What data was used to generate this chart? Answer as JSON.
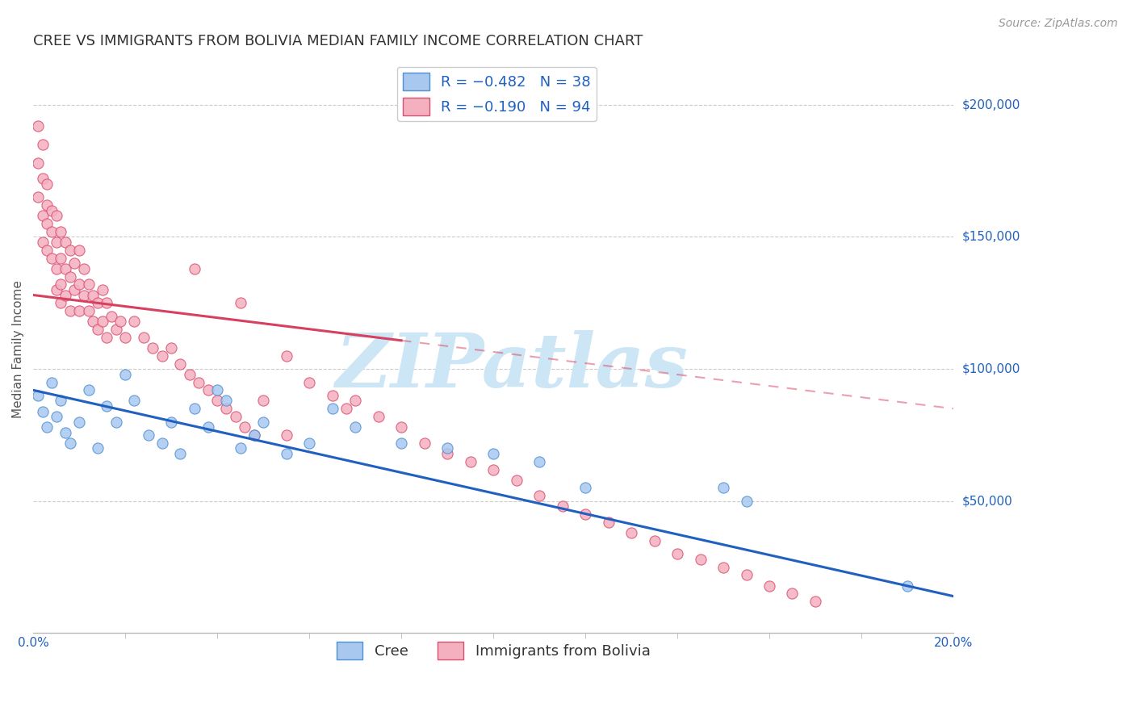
{
  "title": "CREE VS IMMIGRANTS FROM BOLIVIA MEDIAN FAMILY INCOME CORRELATION CHART",
  "source": "Source: ZipAtlas.com",
  "ylabel": "Median Family Income",
  "xmin": 0.0,
  "xmax": 0.2,
  "ymin": 0,
  "ymax": 215000,
  "yticks": [
    50000,
    100000,
    150000,
    200000
  ],
  "ytick_labels": [
    "$50,000",
    "$100,000",
    "$150,000",
    "$200,000"
  ],
  "cree_color": "#a8c8f0",
  "bolivia_color": "#f5b0c0",
  "cree_edge_color": "#5090d0",
  "bolivia_edge_color": "#d85070",
  "cree_line_color": "#2060c0",
  "bolivia_line_color": "#d84060",
  "watermark_text": "ZIPatlas",
  "watermark_color": "#cde6f5",
  "title_fontsize": 13,
  "source_fontsize": 10,
  "axis_label_fontsize": 11,
  "tick_fontsize": 11,
  "legend_fontsize": 13,
  "background_color": "#ffffff",
  "grid_color": "#cccccc",
  "cree_x": [
    0.001,
    0.002,
    0.003,
    0.004,
    0.005,
    0.006,
    0.007,
    0.008,
    0.01,
    0.012,
    0.014,
    0.016,
    0.018,
    0.02,
    0.022,
    0.025,
    0.028,
    0.03,
    0.032,
    0.035,
    0.038,
    0.04,
    0.042,
    0.045,
    0.048,
    0.05,
    0.055,
    0.06,
    0.065,
    0.07,
    0.08,
    0.09,
    0.1,
    0.11,
    0.12,
    0.15,
    0.155,
    0.19
  ],
  "cree_y": [
    90000,
    84000,
    78000,
    95000,
    82000,
    88000,
    76000,
    72000,
    80000,
    92000,
    70000,
    86000,
    80000,
    98000,
    88000,
    75000,
    72000,
    80000,
    68000,
    85000,
    78000,
    92000,
    88000,
    70000,
    75000,
    80000,
    68000,
    72000,
    85000,
    78000,
    72000,
    70000,
    68000,
    65000,
    55000,
    55000,
    50000,
    18000
  ],
  "bolivia_x": [
    0.001,
    0.001,
    0.001,
    0.002,
    0.002,
    0.002,
    0.002,
    0.003,
    0.003,
    0.003,
    0.003,
    0.004,
    0.004,
    0.004,
    0.005,
    0.005,
    0.005,
    0.005,
    0.006,
    0.006,
    0.006,
    0.006,
    0.007,
    0.007,
    0.007,
    0.008,
    0.008,
    0.008,
    0.009,
    0.009,
    0.01,
    0.01,
    0.01,
    0.011,
    0.011,
    0.012,
    0.012,
    0.013,
    0.013,
    0.014,
    0.014,
    0.015,
    0.015,
    0.016,
    0.016,
    0.017,
    0.018,
    0.019,
    0.02,
    0.022,
    0.024,
    0.026,
    0.028,
    0.03,
    0.032,
    0.034,
    0.036,
    0.038,
    0.04,
    0.042,
    0.044,
    0.046,
    0.048,
    0.05,
    0.055,
    0.06,
    0.065,
    0.07,
    0.075,
    0.08,
    0.085,
    0.09,
    0.095,
    0.1,
    0.105,
    0.11,
    0.115,
    0.12,
    0.125,
    0.13,
    0.135,
    0.14,
    0.145,
    0.15,
    0.155,
    0.16,
    0.165,
    0.17,
    0.035,
    0.045,
    0.055,
    0.068
  ],
  "bolivia_y": [
    192000,
    178000,
    165000,
    172000,
    185000,
    158000,
    148000,
    170000,
    162000,
    155000,
    145000,
    160000,
    152000,
    142000,
    158000,
    148000,
    138000,
    130000,
    152000,
    142000,
    132000,
    125000,
    148000,
    138000,
    128000,
    145000,
    135000,
    122000,
    140000,
    130000,
    145000,
    132000,
    122000,
    138000,
    128000,
    132000,
    122000,
    128000,
    118000,
    125000,
    115000,
    130000,
    118000,
    125000,
    112000,
    120000,
    115000,
    118000,
    112000,
    118000,
    112000,
    108000,
    105000,
    108000,
    102000,
    98000,
    95000,
    92000,
    88000,
    85000,
    82000,
    78000,
    75000,
    88000,
    105000,
    95000,
    90000,
    88000,
    82000,
    78000,
    72000,
    68000,
    65000,
    62000,
    58000,
    52000,
    48000,
    45000,
    42000,
    38000,
    35000,
    30000,
    28000,
    25000,
    22000,
    18000,
    15000,
    12000,
    138000,
    125000,
    75000,
    85000
  ],
  "bolivia_line_x0": 0.0,
  "bolivia_line_x_solid_end": 0.08,
  "bolivia_line_x1": 0.2,
  "bolivia_line_y0": 128000,
  "bolivia_line_y1": 85000,
  "cree_line_x0": 0.0,
  "cree_line_x1": 0.2,
  "cree_line_y0": 92000,
  "cree_line_y1": 14000
}
